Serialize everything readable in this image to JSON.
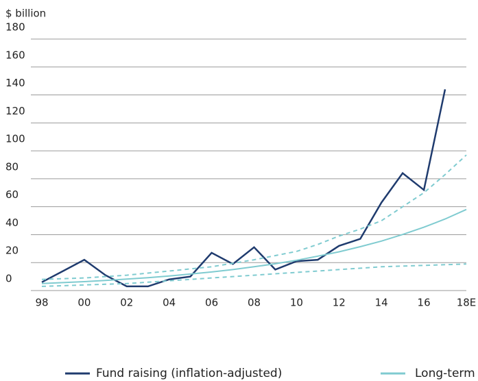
{
  "chart_data": {
    "type": "line",
    "y_label": "$ billion",
    "categories": [
      "98",
      null,
      "00",
      null,
      "02",
      null,
      "04",
      null,
      "06",
      null,
      "08",
      null,
      "10",
      null,
      "12",
      null,
      "14",
      null,
      "16",
      null,
      "18E"
    ],
    "series": [
      {
        "name": "Fund raising (inflation-adjusted)",
        "color": "#1f3b6e",
        "style": "solid",
        "values": [
          6,
          14,
          22,
          11,
          3,
          3,
          8,
          10,
          27,
          19,
          31,
          15,
          21,
          22,
          32,
          37,
          63,
          84,
          72,
          144,
          null
        ]
      },
      {
        "name": "Long-term",
        "color": "#7fcbd0",
        "style": "solid",
        "values": [
          5,
          5.7,
          6.4,
          7.2,
          8.2,
          9.2,
          10.4,
          11.8,
          13.3,
          15,
          17,
          19.2,
          21.7,
          24.6,
          27.7,
          31.4,
          35.4,
          40.1,
          45.3,
          51.2,
          58
        ]
      },
      {
        "color": "#7fcbd0",
        "style": "dashed",
        "values": [
          8,
          8.5,
          9,
          10,
          11,
          12.5,
          14,
          15.5,
          17,
          19.5,
          22,
          25,
          28,
          33,
          39,
          44,
          50,
          60,
          70,
          83,
          97
        ]
      },
      {
        "color": "#7fcbd0",
        "style": "dashed",
        "values": [
          3,
          3.5,
          4,
          4.5,
          5,
          6,
          7,
          8,
          9,
          10,
          11,
          12,
          13,
          14,
          15,
          16,
          17,
          17.5,
          18,
          18.5,
          19
        ]
      }
    ],
    "ylim": [
      0,
      180
    ],
    "yticks": [
      0,
      20,
      40,
      60,
      80,
      100,
      120,
      140,
      160,
      180
    ],
    "grid": true
  }
}
